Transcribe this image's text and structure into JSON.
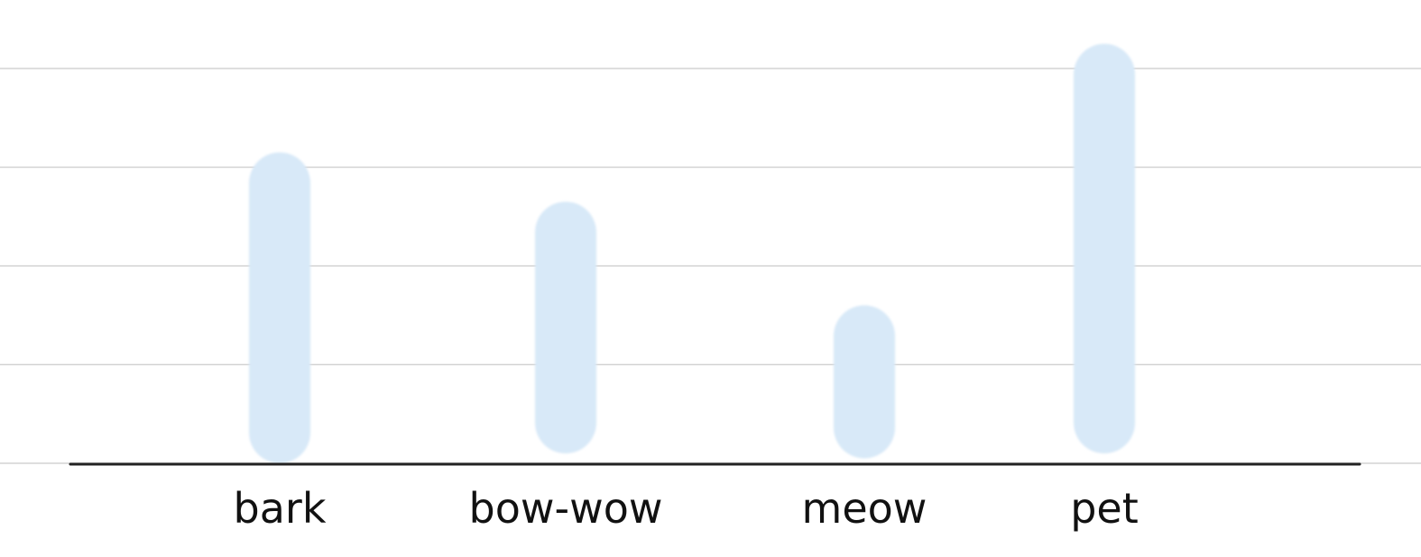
{
  "chart_data": {
    "type": "bar",
    "categories": [
      "bark",
      "bow-wow",
      "meow",
      "pet"
    ],
    "values": [
      3.15,
      2.65,
      1.6,
      4.25
    ],
    "bar_bottoms": [
      0.0,
      0.1,
      0.05,
      0.1
    ],
    "ylim": [
      0,
      4.4
    ],
    "yticks": [
      0,
      1,
      2,
      3,
      4
    ],
    "grid": true,
    "legend": "none",
    "bar_color": "#d8e9f8",
    "grid_color": "#d3d3d3",
    "axis_color": "#222222"
  }
}
